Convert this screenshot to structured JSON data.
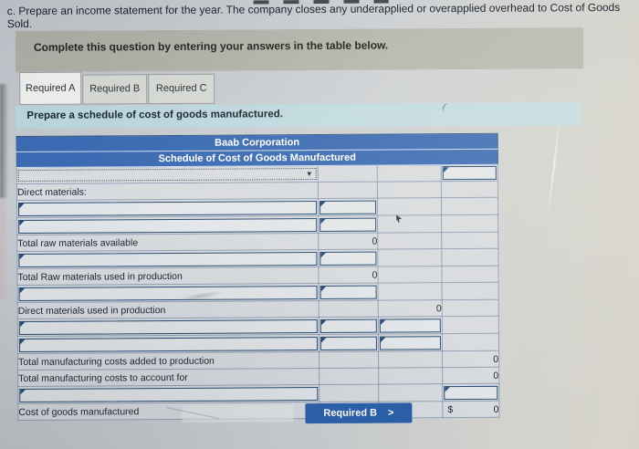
{
  "header": {
    "instruction": "c. Prepare an income statement for the year. The company closes any underapplied or overapplied overhead to Cost of Goods Sold.",
    "banner": "Complete this question by entering your answers in the table below."
  },
  "tabs": [
    {
      "label": "Required A",
      "active": true
    },
    {
      "label": "Required B",
      "active": false
    },
    {
      "label": "Required C",
      "active": false
    }
  ],
  "prompt": "Prepare a schedule of cost of goods manufactured.",
  "table": {
    "title": "Baab Corporation",
    "subtitle": "Schedule of Cost of Goods Manufactured",
    "dropdown_icon": "▼",
    "rows": [
      {
        "type": "select",
        "label": "",
        "inputs": [
          "c4"
        ]
      },
      {
        "type": "label",
        "label": "Direct materials:",
        "indent": 0
      },
      {
        "type": "input",
        "inputs": [
          "c1",
          "c2"
        ]
      },
      {
        "type": "input",
        "inputs": [
          "c1",
          "c2"
        ]
      },
      {
        "type": "total",
        "label": "Total raw materials available",
        "indent": 1,
        "values": {
          "c2": "0"
        }
      },
      {
        "type": "input",
        "inputs": [
          "c1",
          "c2"
        ]
      },
      {
        "type": "total",
        "label": "Total Raw materials used in production",
        "indent": 1,
        "values": {
          "c2": "0"
        }
      },
      {
        "type": "input",
        "inputs": [
          "c1",
          "c2"
        ]
      },
      {
        "type": "total",
        "label": "Direct materials used in production",
        "indent": 0,
        "values": {
          "c3": "0"
        }
      },
      {
        "type": "input",
        "inputs": [
          "c1",
          "c2",
          "c3"
        ]
      },
      {
        "type": "input",
        "inputs": [
          "c1",
          "c2",
          "c3"
        ]
      },
      {
        "type": "total",
        "label": "Total manufacturing costs added to production",
        "indent": 0,
        "values": {
          "c4": "0"
        }
      },
      {
        "type": "total",
        "label": "Total manufacturing costs to account for",
        "indent": 0,
        "values": {
          "c4": "0"
        }
      },
      {
        "type": "input",
        "inputs": [
          "c1",
          "c4"
        ]
      },
      {
        "type": "total",
        "label": "Cost of goods manufactured",
        "indent": 0,
        "values": {
          "c4": "0"
        },
        "currency": "$"
      }
    ]
  },
  "nav": {
    "next_label": "Required B",
    "chevron": ">"
  }
}
